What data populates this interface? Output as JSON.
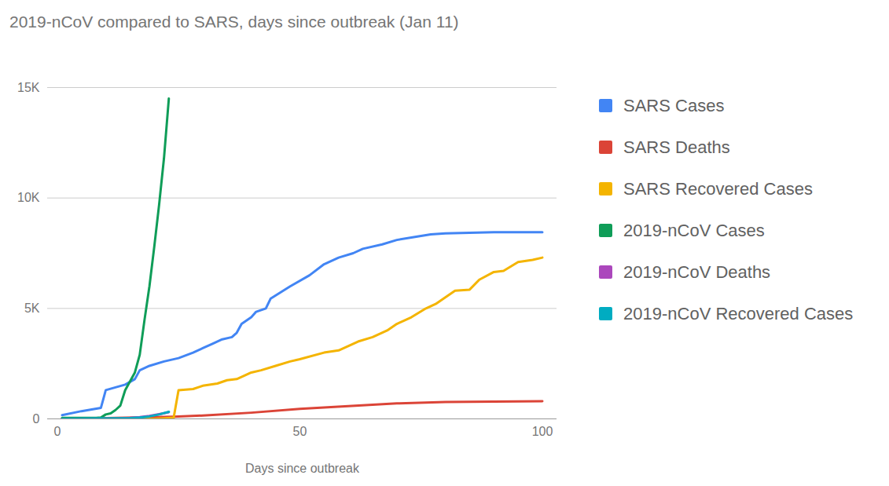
{
  "chart_data": {
    "type": "line",
    "title": "2019-nCoV compared to SARS, days since outbreak (Jan 11)",
    "x_label": "Days since outbreak",
    "xlim": [
      -2,
      103
    ],
    "xticks": [
      0,
      50,
      100
    ],
    "ylim": [
      0,
      15000
    ],
    "yticks": [
      0,
      {
        "value": 5000,
        "label": "5K"
      },
      {
        "value": 10000,
        "label": "10K"
      },
      {
        "value": 15000,
        "label": "15K"
      }
    ],
    "grid": true,
    "legend": "right",
    "series": [
      {
        "name": "SARS Cases",
        "color": "#4285f4",
        "x": [
          1,
          5,
          9,
          10,
          14,
          16,
          17,
          19,
          22,
          25,
          28,
          30,
          32,
          34,
          36,
          37,
          38,
          40,
          41,
          43,
          44,
          48,
          52,
          55,
          58,
          61,
          63,
          67,
          70,
          74,
          77,
          80,
          90,
          100
        ],
        "values": [
          170,
          350,
          500,
          1300,
          1550,
          1800,
          2200,
          2400,
          2600,
          2750,
          3000,
          3200,
          3400,
          3600,
          3700,
          3900,
          4300,
          4600,
          4850,
          5000,
          5450,
          6000,
          6500,
          7000,
          7300,
          7500,
          7700,
          7900,
          8100,
          8250,
          8350,
          8400,
          8450,
          8450
        ]
      },
      {
        "name": "SARS Deaths",
        "color": "#db4437",
        "x": [
          1,
          10,
          20,
          24,
          30,
          40,
          50,
          60,
          70,
          80,
          100
        ],
        "values": [
          5,
          40,
          80,
          100,
          150,
          280,
          450,
          580,
          700,
          760,
          800
        ]
      },
      {
        "name": "SARS Recovered Cases",
        "color": "#f4b400",
        "x": [
          1,
          20,
          24,
          25,
          28,
          30,
          33,
          35,
          37,
          40,
          42,
          45,
          48,
          50,
          55,
          58,
          62,
          65,
          68,
          70,
          73,
          76,
          78,
          80,
          82,
          85,
          87,
          90,
          92,
          95,
          98,
          100
        ],
        "values": [
          0,
          0,
          50,
          1300,
          1350,
          1500,
          1600,
          1750,
          1800,
          2100,
          2200,
          2400,
          2600,
          2700,
          3000,
          3100,
          3500,
          3700,
          4000,
          4300,
          4600,
          5000,
          5200,
          5500,
          5800,
          5850,
          6300,
          6650,
          6700,
          7100,
          7200,
          7300
        ]
      },
      {
        "name": "2019-nCoV Cases",
        "color": "#0f9d58",
        "x": [
          1,
          8,
          9,
          10,
          11,
          12,
          13,
          14,
          15,
          16,
          17,
          18,
          19,
          20,
          21,
          22,
          23
        ],
        "values": [
          41,
          45,
          60,
          200,
          250,
          400,
          600,
          1300,
          1700,
          2100,
          2900,
          4500,
          6000,
          7800,
          9700,
          11800,
          14500
        ]
      },
      {
        "name": "2019-nCoV Deaths",
        "color": "#ab47bc",
        "x": [
          1,
          10,
          13,
          15,
          17,
          19,
          21,
          23
        ],
        "values": [
          1,
          6,
          17,
          41,
          80,
          132,
          213,
          304
        ]
      },
      {
        "name": "2019-nCoV Recovered Cases",
        "color": "#00acc1",
        "x": [
          1,
          12,
          15,
          17,
          19,
          21,
          23
        ],
        "values": [
          0,
          30,
          40,
          60,
          110,
          200,
          320
        ]
      }
    ]
  }
}
